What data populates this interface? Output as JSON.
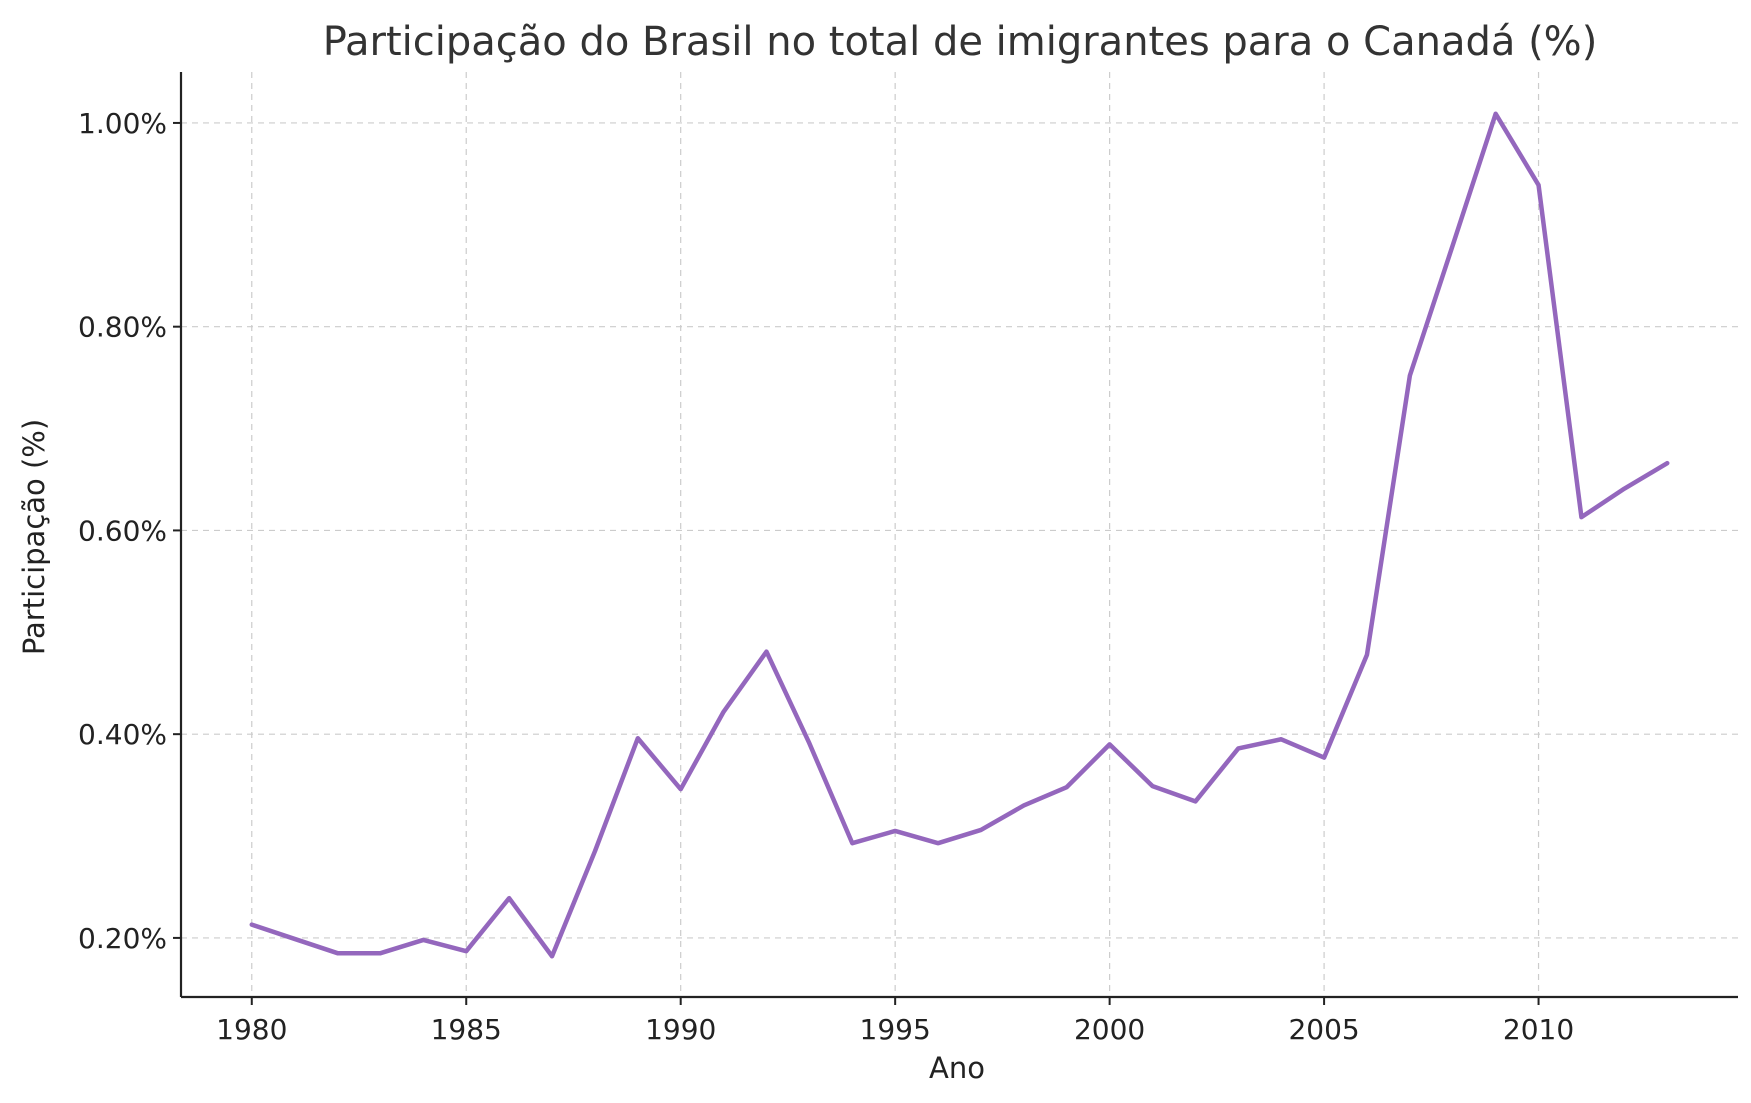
{
  "chart_data": {
    "type": "line",
    "title": "Participação do Brasil no total de imigrantes para o Canadá (%)",
    "xlabel": "Ano",
    "ylabel": "Participação (%)",
    "xlim": [
      1978.35,
      2014.65
    ],
    "ylim": [
      0.142,
      1.05
    ],
    "x_ticks": [
      1980,
      1985,
      1990,
      1995,
      2000,
      2005,
      2010
    ],
    "y_ticks": [
      0.2,
      0.4,
      0.6,
      0.8,
      1.0
    ],
    "y_tick_labels": [
      "0.20%",
      "0.40%",
      "0.60%",
      "0.80%",
      "1.00%"
    ],
    "grid": true,
    "line_color": "#9467bd",
    "x": [
      1980,
      1981,
      1982,
      1983,
      1984,
      1985,
      1986,
      1987,
      1988,
      1989,
      1990,
      1991,
      1992,
      1993,
      1994,
      1995,
      1996,
      1997,
      1998,
      1999,
      2000,
      2001,
      2002,
      2003,
      2004,
      2005,
      2006,
      2007,
      2008,
      2009,
      2010,
      2011,
      2012,
      2013
    ],
    "values": [
      0.213,
      0.199,
      0.185,
      0.185,
      0.198,
      0.187,
      0.239,
      0.182,
      0.285,
      0.396,
      0.346,
      0.422,
      0.481,
      0.391,
      0.293,
      0.305,
      0.293,
      0.306,
      0.33,
      0.348,
      0.39,
      0.349,
      0.334,
      0.386,
      0.395,
      0.377,
      0.478,
      0.752,
      0.88,
      1.009,
      0.939,
      0.613,
      0.641,
      0.666
    ]
  }
}
